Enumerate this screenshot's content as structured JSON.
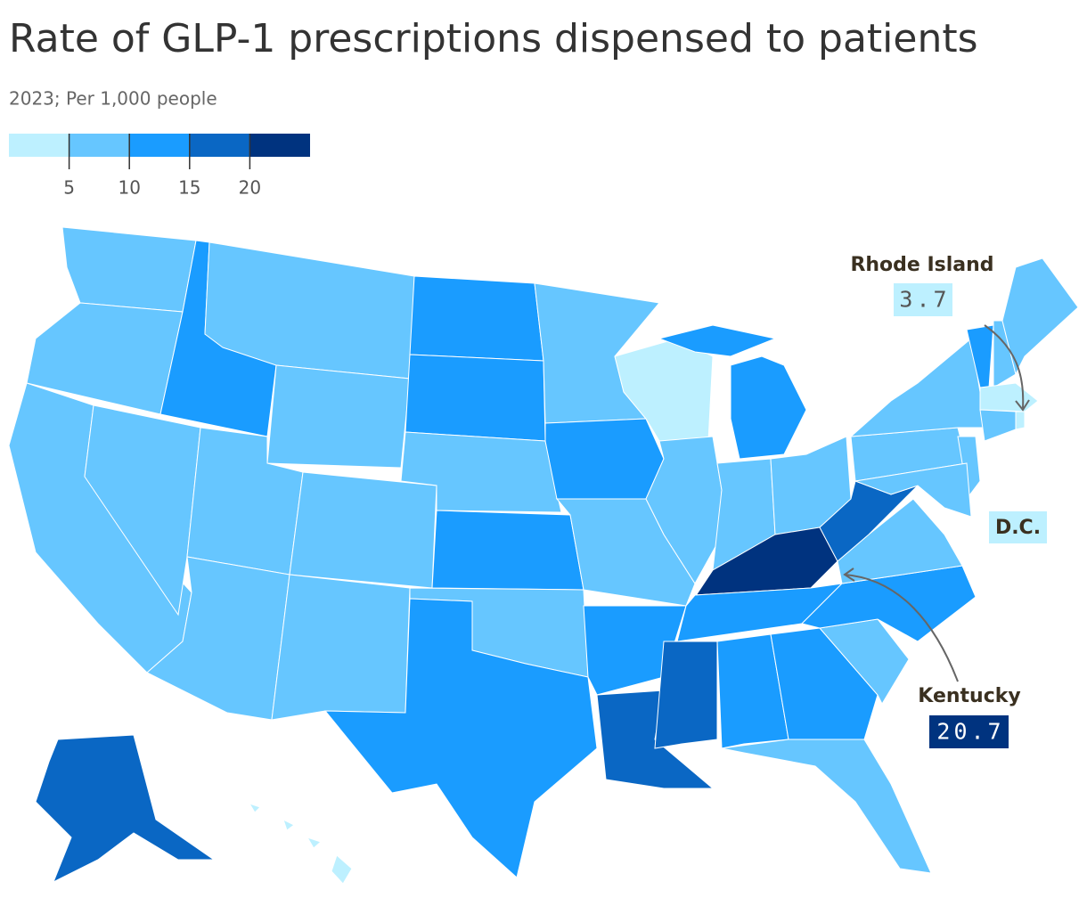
{
  "chart_data": {
    "type": "choropleth",
    "title": "Rate of GLP-1 prescriptions dispensed to patients",
    "subtitle": "2023; Per 1,000 people",
    "legend": {
      "lim": [
        0,
        25
      ],
      "ticks": [
        5,
        10,
        15,
        20
      ],
      "colors": [
        "#bdf0ff",
        "#66c6ff",
        "#1a9cff",
        "#0a67c4",
        "#00337f"
      ]
    },
    "values": [
      8,
      8,
      8,
      8,
      13,
      8,
      8,
      8,
      8,
      8,
      8,
      13,
      13,
      8,
      13,
      8,
      13,
      8,
      13,
      8,
      13,
      17,
      4,
      8,
      13,
      8,
      8,
      20.7,
      13,
      17,
      13,
      13,
      8,
      8,
      13,
      8,
      17,
      8,
      8,
      8,
      8,
      13,
      8,
      8,
      4,
      3.7,
      8,
      17,
      4
    ],
    "annotations": [
      {
        "label": "Rhode Island",
        "index": 45
      },
      {
        "label": "D.C."
      },
      {
        "label": "Kentucky",
        "index": 27
      }
    ]
  }
}
